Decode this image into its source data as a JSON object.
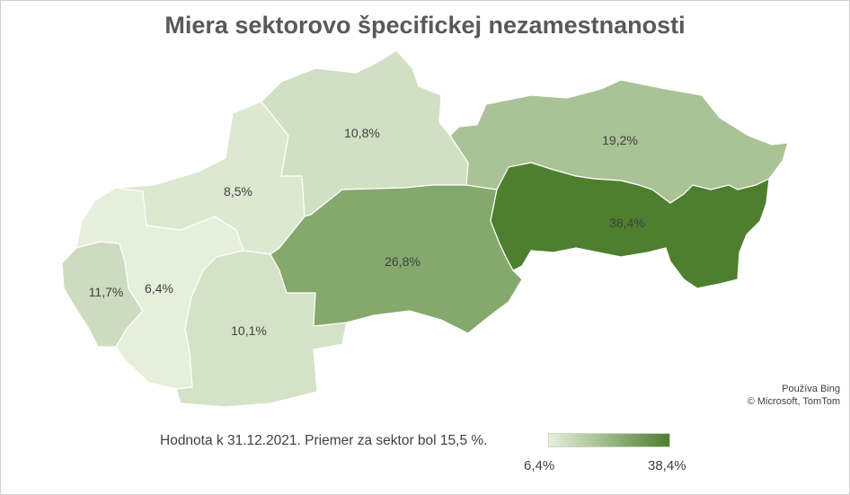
{
  "title": "Miera sektorovo špecifickej nezamestnanosti",
  "attribution": {
    "line1": "Používa Bing",
    "line2": "© Microsoft, TomTom"
  },
  "note": "Hodnota k 31.12.2021. Priemer za sektor bol 15,5 %.",
  "legend": {
    "min_label": "6,4%",
    "max_label": "38,4%",
    "min_value": 6.4,
    "max_value": 38.4,
    "min_color": "#e6efdb",
    "max_color": "#4e7f2f"
  },
  "regions": [
    {
      "id": "bratislava",
      "label": "11,7%",
      "value": 11.7
    },
    {
      "id": "trnava",
      "label": "6,4%",
      "value": 6.4
    },
    {
      "id": "trencin",
      "label": "8,5%",
      "value": 8.5
    },
    {
      "id": "nitra",
      "label": "10,1%",
      "value": 10.1
    },
    {
      "id": "zilina",
      "label": "10,8%",
      "value": 10.8
    },
    {
      "id": "banska-bystrica",
      "label": "26,8%",
      "value": 26.8
    },
    {
      "id": "presov",
      "label": "19,2%",
      "value": 19.2
    },
    {
      "id": "kosice",
      "label": "38,4%",
      "value": 38.4
    }
  ]
}
